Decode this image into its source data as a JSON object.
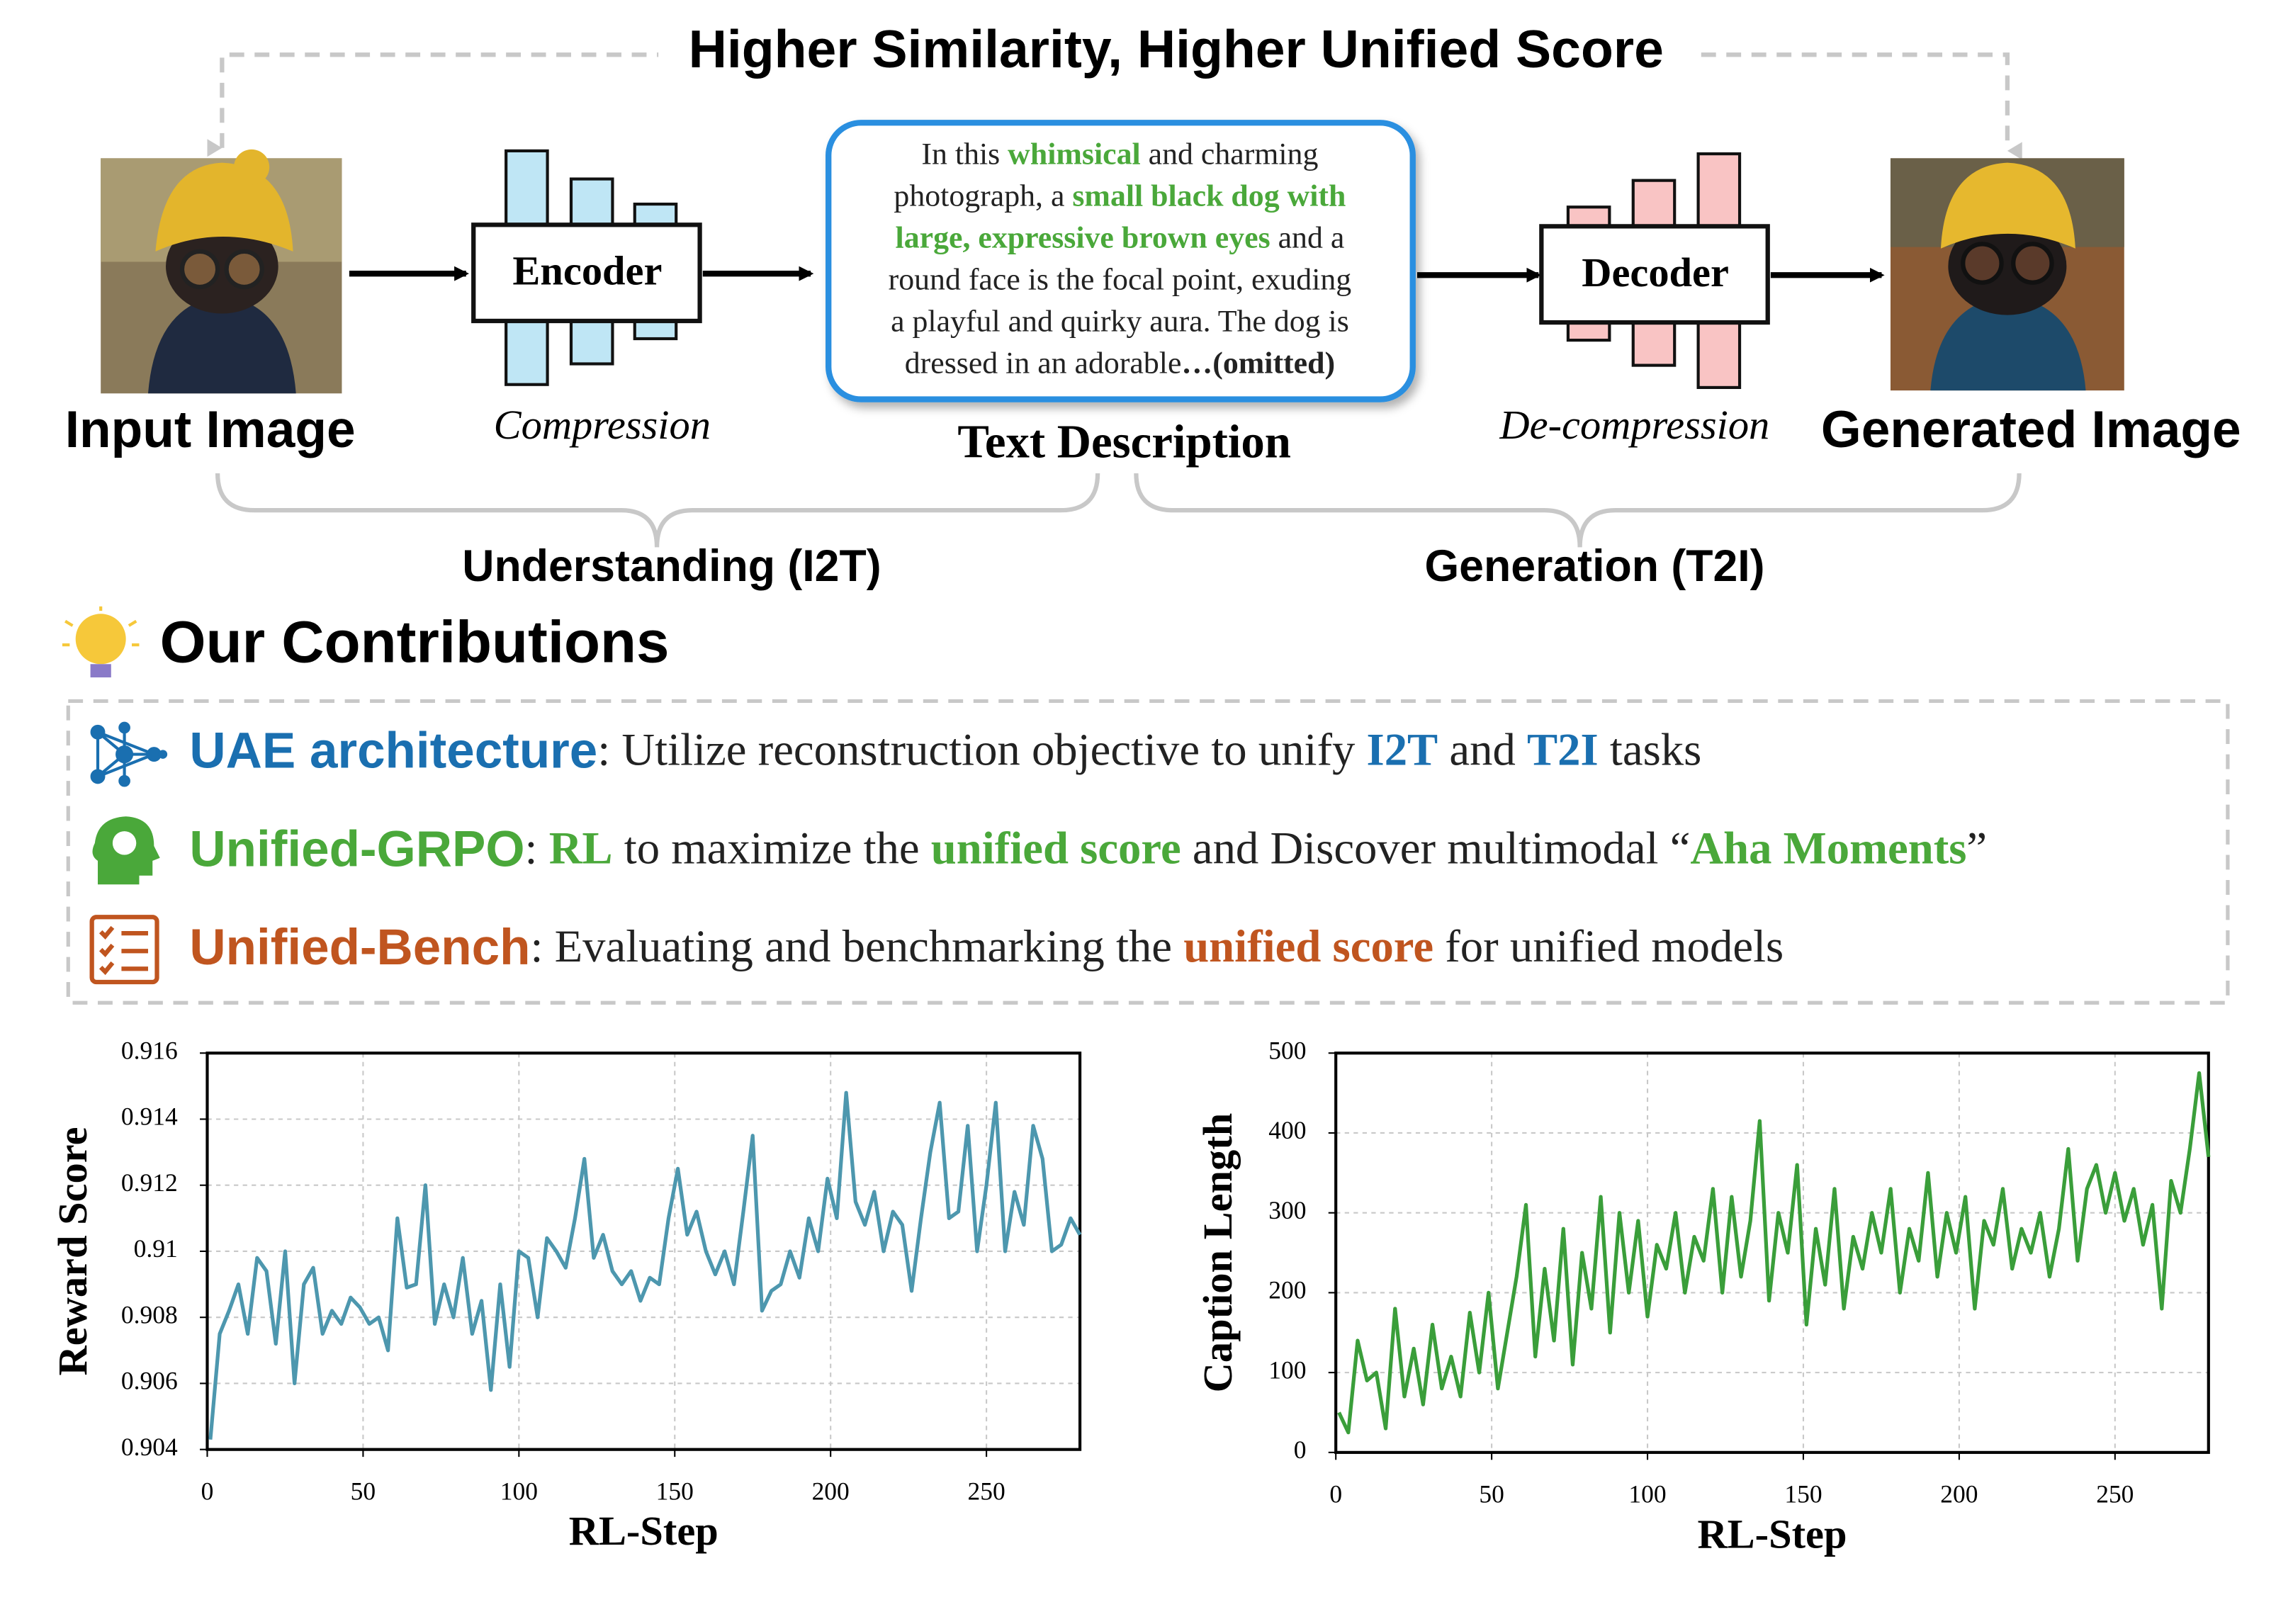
{
  "diagram": {
    "title": "Higher Similarity, Higher Unified Score",
    "input_label": "Input Image",
    "encoder": "Encoder",
    "compression": "Compression",
    "text_description_label": "Text Description",
    "decoder": "Decoder",
    "decompression": "De-compression",
    "output_label": "Generated Image",
    "understanding": "Understanding (I2T)",
    "generation": "Generation (T2I)",
    "description_lines": [
      [
        {
          "text": "In this "
        },
        {
          "text": "whimsical",
          "color": "#4aa83a",
          "bold": true
        },
        {
          "text": " and charming"
        }
      ],
      [
        {
          "text": "photograph, a "
        },
        {
          "text": "small black dog with",
          "color": "#4aa83a",
          "bold": true
        }
      ],
      [
        {
          "text": "large, expressive brown eyes",
          "color": "#4aa83a",
          "bold": true
        },
        {
          "text": " and a"
        }
      ],
      [
        {
          "text": "round face is the focal point, exuding"
        }
      ],
      [
        {
          "text": "a playful and quirky aura. The dog is"
        }
      ],
      [
        {
          "text": "dressed in an adorable"
        },
        {
          "text": "…(omitted)",
          "bold": true
        }
      ]
    ]
  },
  "contributions": {
    "heading": "Our Contributions",
    "items": [
      {
        "name": "UAE architecture",
        "color": "#1a6fb0",
        "text": [
          {
            "text": ": Utilize reconstruction objective to unify "
          },
          {
            "text": "I2T",
            "color": "#1a6fb0",
            "bold": true
          },
          {
            "text": " and "
          },
          {
            "text": "T2I",
            "color": "#1a6fb0",
            "bold": true
          },
          {
            "text": " tasks"
          }
        ]
      },
      {
        "name": "Unified-GRPO",
        "color": "#4aa83a",
        "text": [
          {
            "text": ": "
          },
          {
            "text": "RL",
            "color": "#4aa83a",
            "bold": true
          },
          {
            "text": " to maximize the "
          },
          {
            "text": "unified score",
            "color": "#4aa83a",
            "bold": true
          },
          {
            "text": " and Discover multimodal “"
          },
          {
            "text": "Aha Moments",
            "color": "#4aa83a",
            "bold": true
          },
          {
            "text": "”"
          }
        ]
      },
      {
        "name": "Unified-Bench",
        "color": "#c0551f",
        "text": [
          {
            "text": ": Evaluating and benchmarking the "
          },
          {
            "text": "unified score",
            "color": "#c0551f",
            "bold": true
          },
          {
            "text": " for  unified models"
          }
        ]
      }
    ]
  },
  "chart_data": [
    {
      "type": "line",
      "x_label": "RL-Step",
      "y_label": "Reward Score",
      "grid": true,
      "xlim": [
        0,
        280
      ],
      "xticks": [
        0,
        50,
        100,
        150,
        200,
        250
      ],
      "ylim": [
        0.904,
        0.916
      ],
      "yticks": [
        0.904,
        0.906,
        0.908,
        0.91,
        0.912,
        0.914,
        0.916
      ],
      "x": [
        1,
        4,
        7,
        10,
        13,
        16,
        19,
        22,
        25,
        28,
        31,
        34,
        37,
        40,
        43,
        46,
        49,
        52,
        55,
        58,
        61,
        64,
        67,
        70,
        73,
        76,
        79,
        82,
        85,
        88,
        91,
        94,
        97,
        100,
        103,
        106,
        109,
        112,
        115,
        118,
        121,
        124,
        127,
        130,
        133,
        136,
        139,
        142,
        145,
        148,
        151,
        154,
        157,
        160,
        163,
        166,
        169,
        172,
        175,
        178,
        181,
        184,
        187,
        190,
        193,
        196,
        199,
        202,
        205,
        208,
        211,
        214,
        217,
        220,
        223,
        226,
        229,
        232,
        235,
        238,
        241,
        244,
        247,
        250,
        253,
        256,
        259,
        262,
        265,
        268,
        271,
        274,
        277,
        280
      ],
      "series": [
        {
          "color": "#4d97ae",
          "values": [
            0.9043,
            0.9075,
            0.9082,
            0.909,
            0.9075,
            0.9098,
            0.9094,
            0.9072,
            0.91,
            0.906,
            0.909,
            0.9095,
            0.9075,
            0.9082,
            0.9078,
            0.9086,
            0.9083,
            0.9078,
            0.908,
            0.907,
            0.911,
            0.9089,
            0.909,
            0.912,
            0.9078,
            0.909,
            0.908,
            0.9098,
            0.9075,
            0.9085,
            0.9058,
            0.909,
            0.9065,
            0.91,
            0.9098,
            0.908,
            0.9104,
            0.91,
            0.9095,
            0.911,
            0.9128,
            0.9098,
            0.9105,
            0.9094,
            0.909,
            0.9094,
            0.9085,
            0.9092,
            0.909,
            0.911,
            0.9125,
            0.9105,
            0.9112,
            0.91,
            0.9093,
            0.91,
            0.909,
            0.9112,
            0.9135,
            0.9082,
            0.9088,
            0.909,
            0.91,
            0.9092,
            0.911,
            0.91,
            0.9122,
            0.911,
            0.9148,
            0.9115,
            0.9108,
            0.9118,
            0.91,
            0.9112,
            0.9108,
            0.9088,
            0.911,
            0.913,
            0.9145,
            0.911,
            0.9112,
            0.9138,
            0.91,
            0.912,
            0.9145,
            0.91,
            0.9118,
            0.9108,
            0.9138,
            0.9128,
            0.91,
            0.9102,
            0.911,
            0.9105
          ]
        }
      ]
    },
    {
      "type": "line",
      "x_label": "RL-Step",
      "y_label": "Caption Length",
      "grid": true,
      "xlim": [
        0,
        280
      ],
      "xticks": [
        0,
        50,
        100,
        150,
        200,
        250
      ],
      "ylim": [
        0,
        500
      ],
      "yticks": [
        0,
        100,
        200,
        300,
        400,
        500
      ],
      "x": [
        1,
        4,
        7,
        10,
        13,
        16,
        19,
        22,
        25,
        28,
        31,
        34,
        37,
        40,
        43,
        46,
        49,
        52,
        55,
        58,
        61,
        64,
        67,
        70,
        73,
        76,
        79,
        82,
        85,
        88,
        91,
        94,
        97,
        100,
        103,
        106,
        109,
        112,
        115,
        118,
        121,
        124,
        127,
        130,
        133,
        136,
        139,
        142,
        145,
        148,
        151,
        154,
        157,
        160,
        163,
        166,
        169,
        172,
        175,
        178,
        181,
        184,
        187,
        190,
        193,
        196,
        199,
        202,
        205,
        208,
        211,
        214,
        217,
        220,
        223,
        226,
        229,
        232,
        235,
        238,
        241,
        244,
        247,
        250,
        253,
        256,
        259,
        262,
        265,
        268,
        271,
        274,
        277,
        280
      ],
      "series": [
        {
          "color": "#3a9e3a",
          "values": [
            50,
            25,
            140,
            90,
            100,
            30,
            180,
            70,
            130,
            60,
            160,
            80,
            120,
            70,
            175,
            100,
            200,
            80,
            150,
            220,
            310,
            120,
            230,
            140,
            280,
            110,
            250,
            180,
            320,
            150,
            300,
            200,
            290,
            170,
            260,
            230,
            300,
            200,
            270,
            240,
            330,
            200,
            320,
            220,
            290,
            415,
            190,
            300,
            250,
            360,
            160,
            280,
            210,
            330,
            180,
            270,
            230,
            300,
            250,
            330,
            200,
            280,
            240,
            350,
            220,
            300,
            250,
            320,
            180,
            290,
            260,
            330,
            230,
            280,
            250,
            300,
            220,
            280,
            380,
            240,
            330,
            360,
            300,
            350,
            290,
            330,
            260,
            310,
            180,
            340,
            300,
            380,
            475,
            370
          ]
        }
      ]
    }
  ]
}
